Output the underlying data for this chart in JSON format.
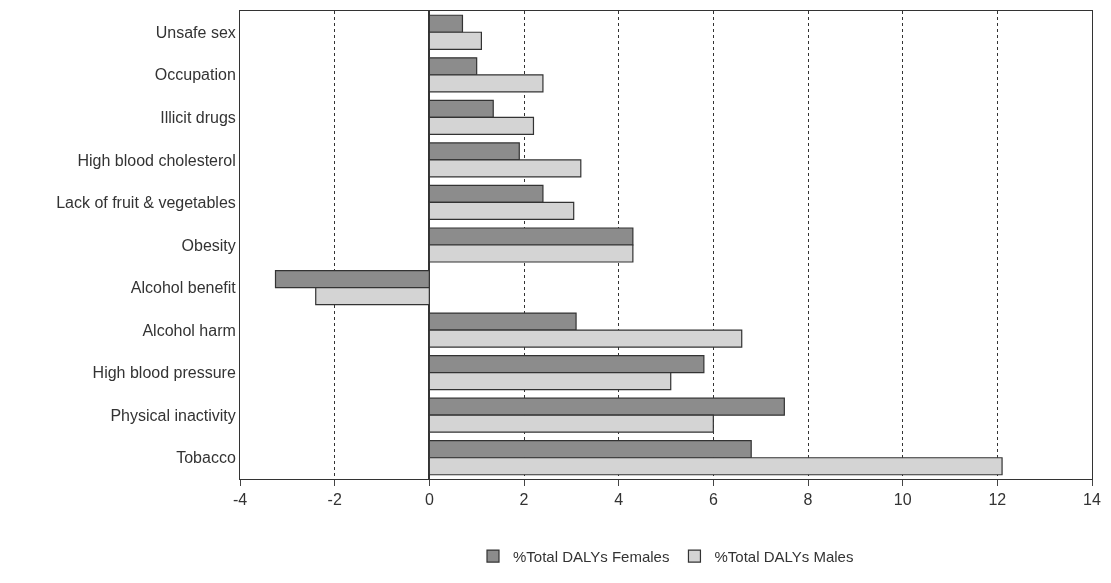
{
  "chart_data": {
    "type": "bar",
    "orientation": "horizontal",
    "categories": [
      "Unsafe sex",
      "Occupation",
      "Illicit drugs",
      "High blood cholesterol",
      "Lack of fruit & vegetables",
      "Obesity",
      "Alcohol benefit",
      "Alcohol harm",
      "High blood pressure",
      "Physical inactivity",
      "Tobacco"
    ],
    "series": [
      {
        "name": "%Total DALYs Females",
        "color": "#8c8c8c",
        "values": [
          0.7,
          1.0,
          1.35,
          1.9,
          2.4,
          4.3,
          -3.25,
          3.1,
          5.8,
          7.5,
          6.8
        ]
      },
      {
        "name": "%Total DALYs Males",
        "color": "#d4d4d4",
        "values": [
          1.1,
          2.4,
          2.2,
          3.2,
          3.05,
          4.3,
          -2.4,
          6.6,
          5.1,
          6.0,
          12.1
        ]
      }
    ],
    "xlim": [
      -4,
      14
    ],
    "xticks": [
      -4,
      -2,
      0,
      2,
      4,
      6,
      8,
      10,
      12,
      14
    ],
    "grid": "x",
    "legend": "bottom"
  }
}
